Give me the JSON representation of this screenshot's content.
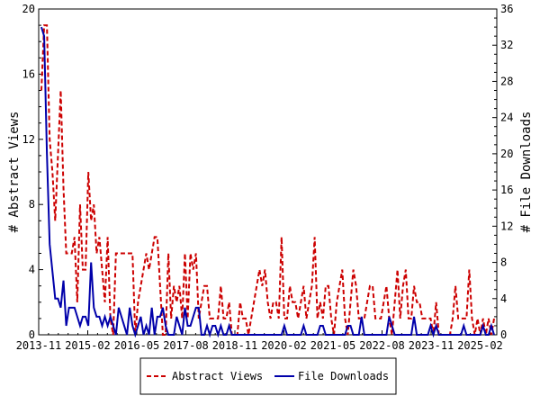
{
  "chart_data": {
    "type": "line",
    "xlabel": "",
    "ylabel_left": "# Abstract Views",
    "ylabel_right": "# File Downloads",
    "ylim_left": [
      0,
      20
    ],
    "ylim_right": [
      0,
      36
    ],
    "yticks_left": [
      "0",
      "4",
      "8",
      "12",
      "16",
      "20"
    ],
    "yticks_right": [
      "0",
      "4",
      "8",
      "12",
      "16",
      "20",
      "24",
      "28",
      "32",
      "36"
    ],
    "xtick_labels": [
      "2013-11",
      "2015-02",
      "2016-05",
      "2017-08",
      "2018-11",
      "2020-02",
      "2021-05",
      "2022-08",
      "2023-11",
      "2025-02"
    ],
    "grid": false,
    "legend_position": "bottom-center",
    "series": [
      {
        "name": "Abstract Views",
        "axis": "left",
        "color": "#cc0000",
        "dash": "dashed",
        "values": [
          15,
          19,
          19,
          12,
          10,
          7,
          11,
          15,
          9,
          5,
          5,
          5,
          6,
          2,
          8,
          4,
          4,
          10,
          7,
          8,
          5,
          6,
          4,
          2,
          6,
          1,
          0,
          5,
          5,
          5,
          5,
          5,
          5,
          5,
          0,
          2,
          3,
          4,
          5,
          4,
          5,
          6,
          6,
          3,
          0,
          0,
          5,
          1,
          3,
          2,
          3,
          1,
          5,
          1,
          5,
          4,
          5,
          1,
          2,
          3,
          3,
          1,
          1,
          1,
          1,
          3,
          1,
          1,
          2,
          0,
          0,
          0,
          2,
          1,
          1,
          0,
          1,
          2,
          3,
          4,
          3,
          4,
          2,
          1,
          2,
          2,
          1,
          6,
          1,
          1,
          3,
          2,
          2,
          1,
          2,
          3,
          1,
          2,
          3,
          6,
          1,
          2,
          1,
          3,
          3,
          1,
          0,
          2,
          3,
          4,
          1,
          0,
          2,
          4,
          3,
          1,
          1,
          1,
          2,
          3,
          3,
          1,
          1,
          1,
          2,
          3,
          1,
          0,
          2,
          4,
          1,
          3,
          4,
          1,
          1,
          3,
          2,
          2,
          1,
          1,
          1,
          1,
          0,
          2,
          0,
          0,
          0,
          0,
          0,
          1,
          3,
          1,
          1,
          1,
          1,
          4,
          1,
          0,
          1,
          0,
          1,
          0,
          1,
          0,
          1
        ]
      },
      {
        "name": "File Downloads",
        "axis": "right",
        "color": "#0000aa",
        "dash": "solid",
        "values": [
          34,
          33,
          20,
          10,
          7,
          4,
          4,
          3,
          6,
          1,
          3,
          3,
          3,
          2,
          1,
          2,
          2,
          1,
          8,
          3,
          2,
          2,
          1,
          2,
          1,
          2,
          1,
          0,
          3,
          2,
          1,
          0,
          3,
          1,
          0,
          1,
          2,
          0,
          1,
          0,
          3,
          0,
          2,
          2,
          3,
          1,
          0,
          0,
          0,
          2,
          1,
          0,
          3,
          1,
          1,
          2,
          3,
          3,
          0,
          0,
          1,
          0,
          1,
          1,
          0,
          1,
          0,
          0,
          1,
          0,
          0,
          0,
          0,
          0,
          0,
          0,
          0,
          0,
          0,
          0,
          0,
          0,
          0,
          0,
          0,
          0,
          0,
          0,
          1,
          0,
          0,
          0,
          0,
          0,
          0,
          1,
          0,
          0,
          0,
          0,
          0,
          1,
          1,
          0,
          0,
          0,
          0,
          0,
          0,
          0,
          0,
          1,
          1,
          0,
          0,
          0,
          2,
          0,
          0,
          0,
          0,
          0,
          0,
          0,
          0,
          0,
          2,
          1,
          0,
          0,
          0,
          0,
          0,
          0,
          0,
          2,
          0,
          0,
          0,
          0,
          0,
          1,
          0,
          1,
          0,
          0,
          0,
          0,
          0,
          0,
          0,
          0,
          0,
          1,
          0,
          0,
          0,
          0,
          0,
          0,
          1,
          0,
          0,
          1,
          0
        ]
      }
    ]
  }
}
